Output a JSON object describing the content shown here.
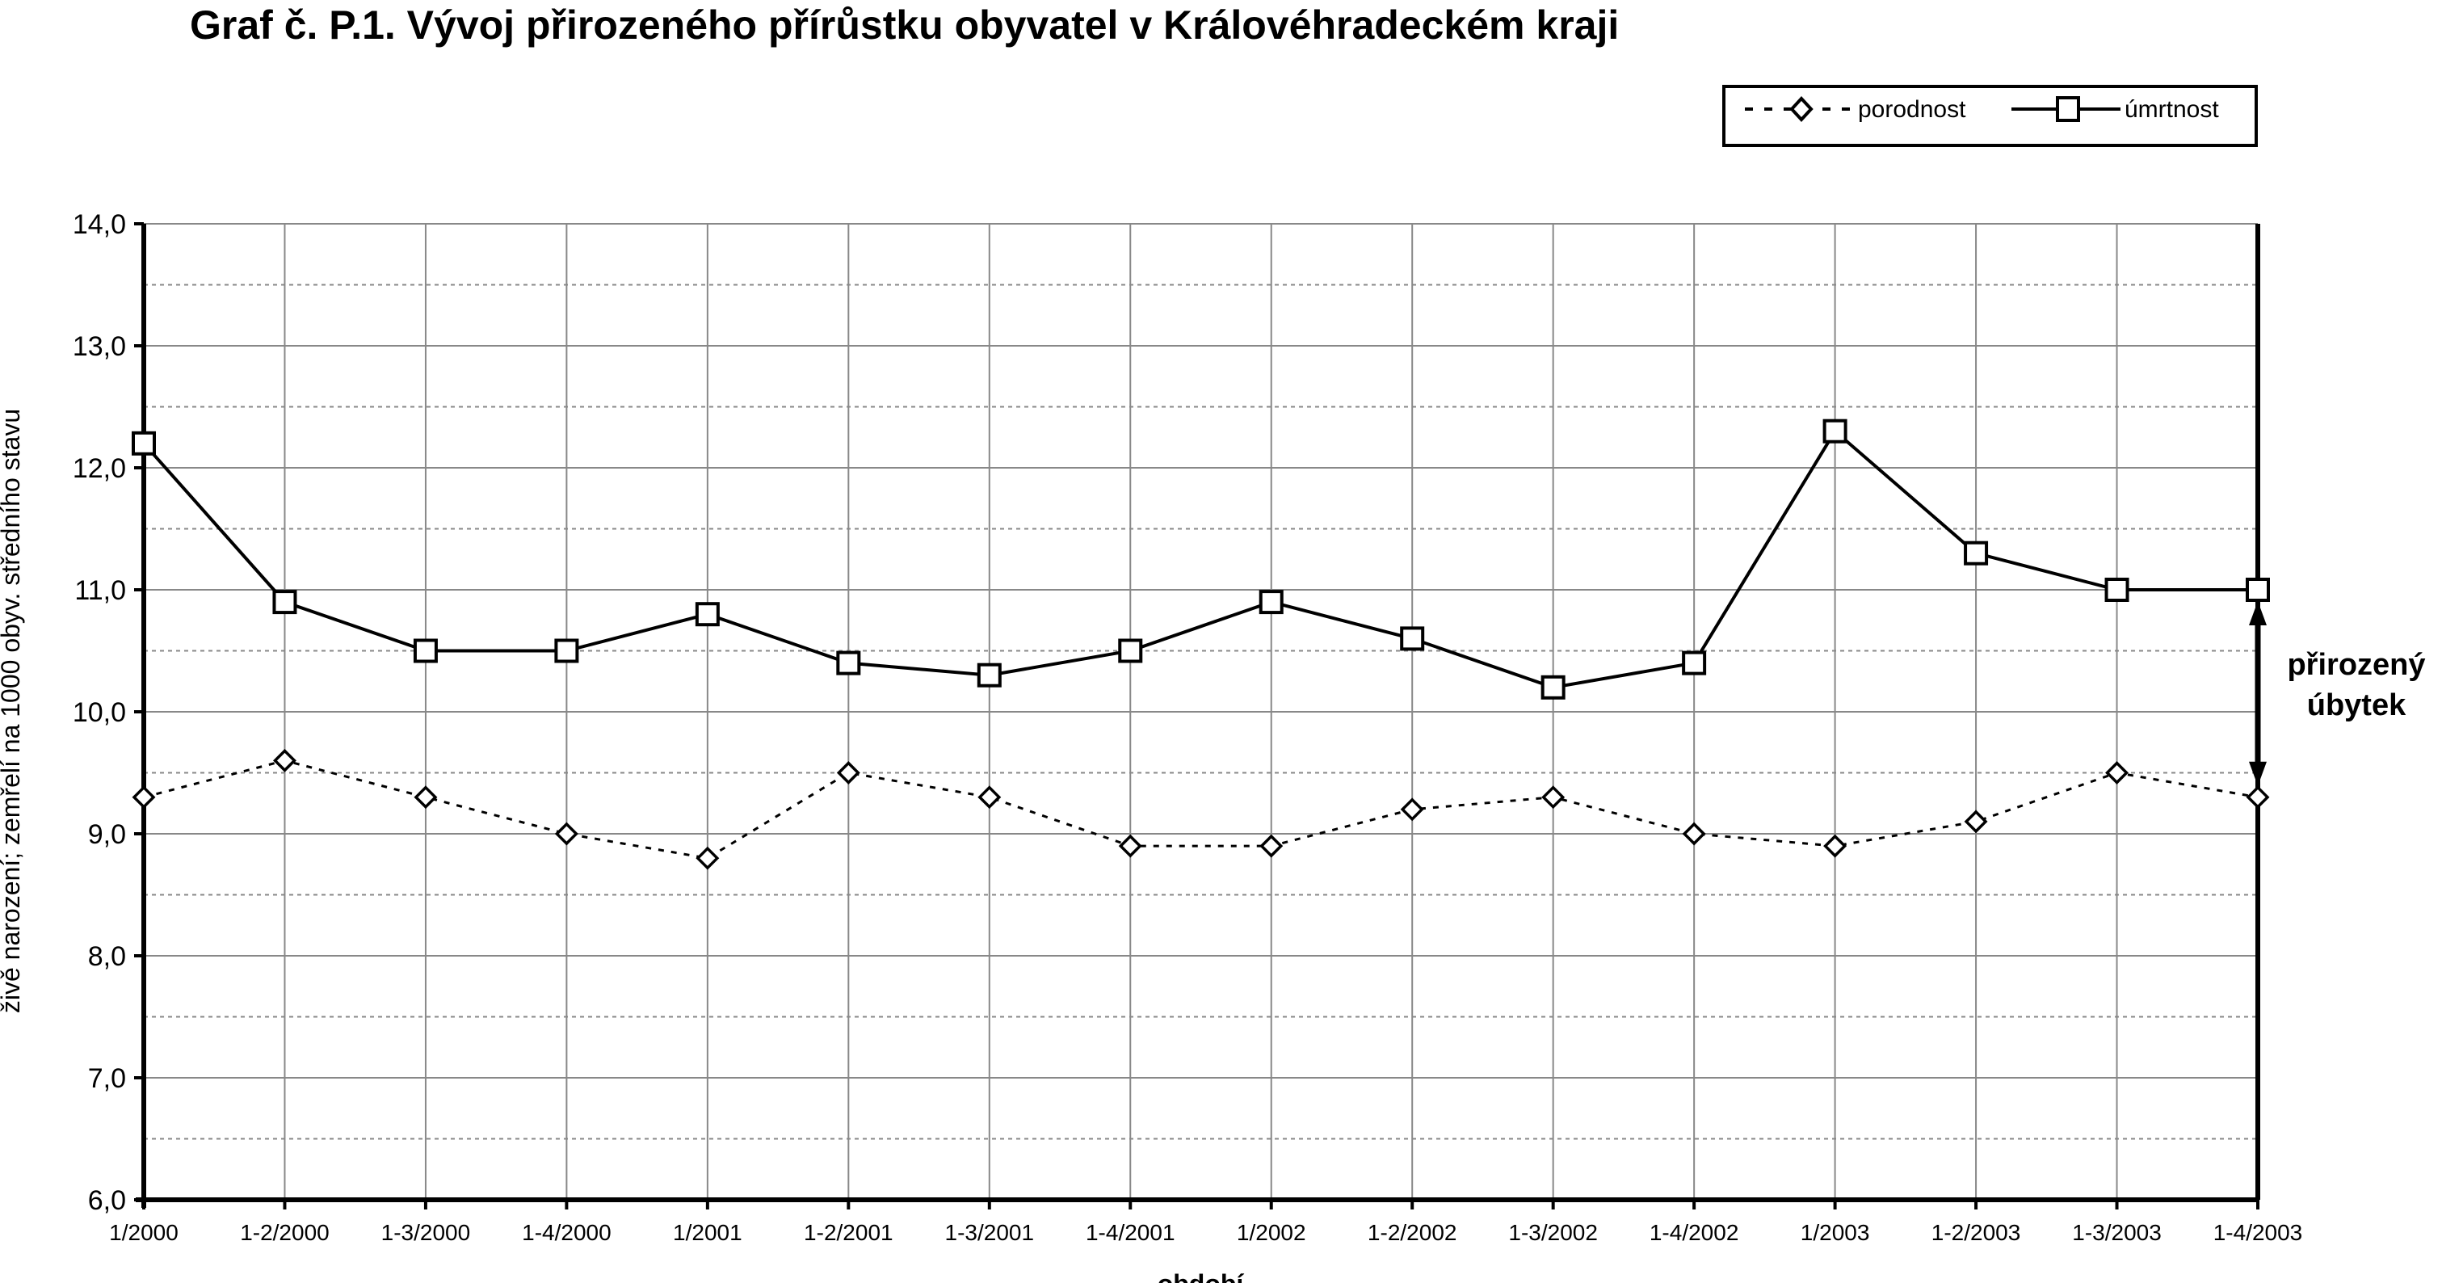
{
  "chart_data": {
    "type": "line",
    "title": "Graf č. P.1. Vývoj přirozeného přírůstku obyvatel v Královéhradeckém kraji",
    "xlabel": "období",
    "ylabel": "živě narození; zemřelí na 1000 obyv. středního stavu",
    "ylim": [
      6.0,
      14.0
    ],
    "yticks": [
      "6,0",
      "7,0",
      "8,0",
      "9,0",
      "10,0",
      "11,0",
      "12,0",
      "13,0",
      "14,0"
    ],
    "grid": true,
    "legend_position": "top-right",
    "categories": [
      "1/2000",
      "1-2/2000",
      "1-3/2000",
      "1-4/2000",
      "1/2001",
      "1-2/2001",
      "1-3/2001",
      "1-4/2001",
      "1/2002",
      "1-2/2002",
      "1-3/2002",
      "1-4/2002",
      "1/2003",
      "1-2/2003",
      "1-3/2003",
      "1-4/2003"
    ],
    "series": [
      {
        "name": "porodnost",
        "style": "dotted",
        "marker": "diamond",
        "values": [
          9.3,
          9.6,
          9.3,
          9.0,
          8.8,
          9.5,
          9.3,
          8.9,
          8.9,
          9.2,
          9.3,
          9.0,
          8.9,
          9.1,
          9.5,
          9.3
        ]
      },
      {
        "name": "úmrtnost",
        "style": "solid",
        "marker": "square",
        "values": [
          12.2,
          10.9,
          10.5,
          10.5,
          10.8,
          10.4,
          10.3,
          10.5,
          10.9,
          10.6,
          10.2,
          10.4,
          12.3,
          11.3,
          11.0,
          11.0
        ]
      }
    ],
    "annotation": {
      "line1": "přirozený",
      "line2": "úbytek"
    }
  }
}
